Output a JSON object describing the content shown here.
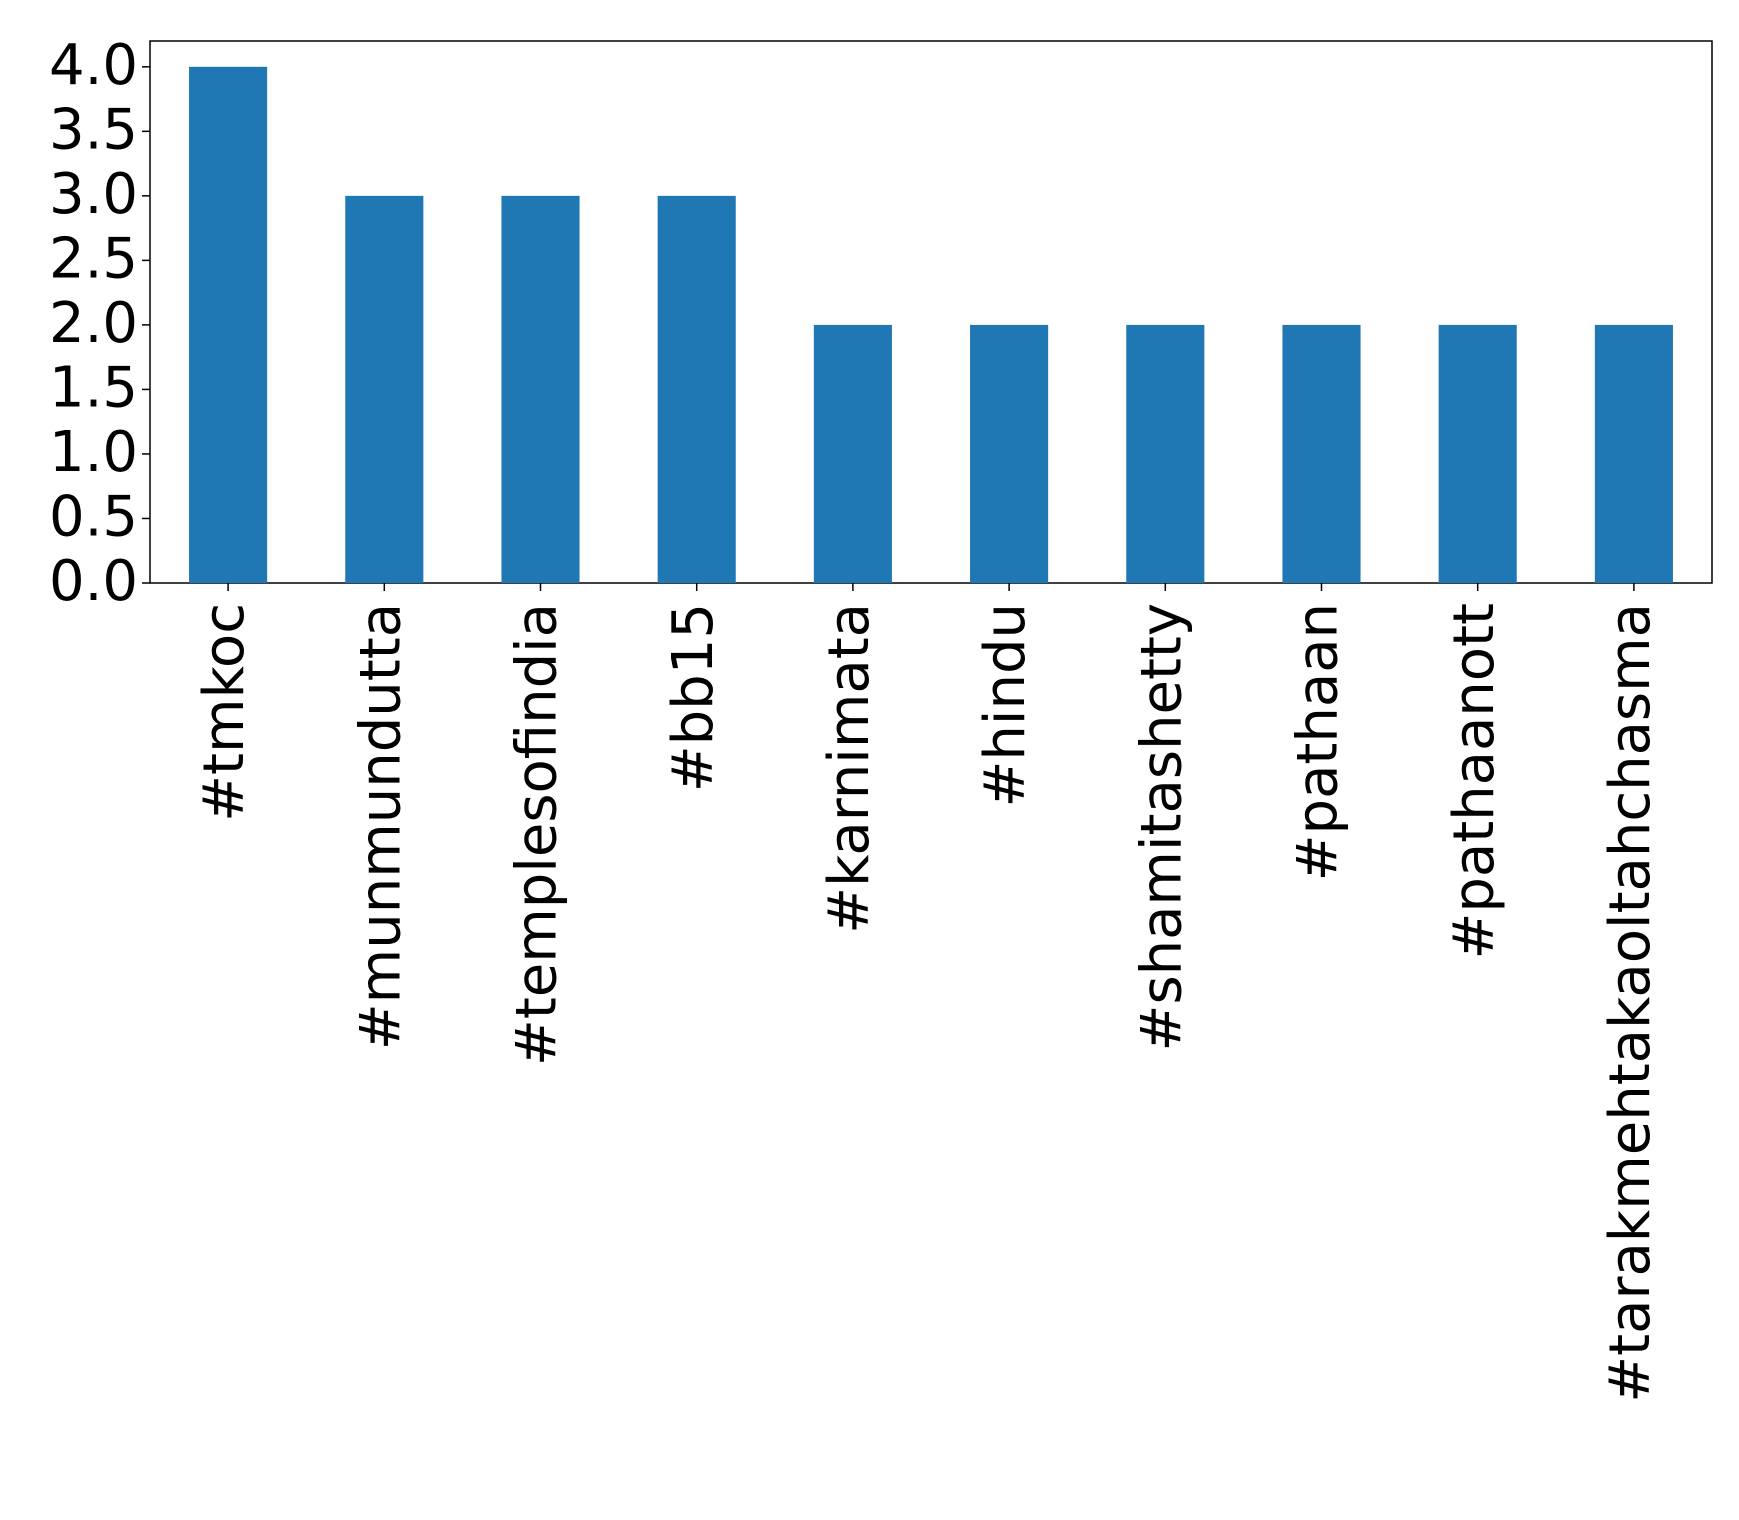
{
  "chart_data": {
    "type": "bar",
    "categories": [
      "#tmkoc",
      "#munmundutta",
      "#templesofindia",
      "#bb15",
      "#karnimata",
      "#hindu",
      "#shamitashetty",
      "#pathaan",
      "#pathaanott",
      "#tarakmehtakaoltahchasma"
    ],
    "values": [
      4,
      3,
      3,
      3,
      2,
      2,
      2,
      2,
      2,
      2
    ],
    "color": "#1f77b4",
    "ylim": [
      0,
      4.2
    ],
    "yticks": [
      {
        "value": 0,
        "label": "0.0"
      },
      {
        "value": 0.5,
        "label": "0.5"
      },
      {
        "value": 1,
        "label": "1.0"
      },
      {
        "value": 1.5,
        "label": "1.5"
      },
      {
        "value": 2,
        "label": "2.0"
      },
      {
        "value": 2.5,
        "label": "2.5"
      },
      {
        "value": 3,
        "label": "3.0"
      },
      {
        "value": 3.5,
        "label": "3.5"
      },
      {
        "value": 4,
        "label": "4.0"
      }
    ],
    "grid": false
  }
}
